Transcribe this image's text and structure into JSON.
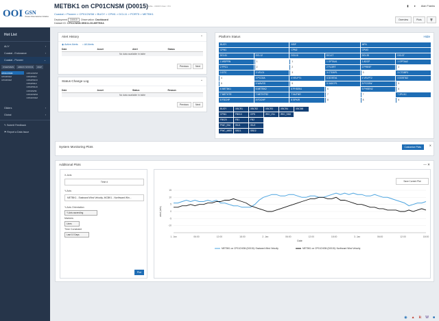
{
  "sidebar": {
    "logo_main": "OOI",
    "logo_sub1": "GSN",
    "logo_sub2": "Ocean Observatories Initiative",
    "heading": "Hot List",
    "items": [
      {
        "label": "ALIY"
      },
      {
        "label": "Coastal - Endurance"
      },
      {
        "label": "Coastal - Pioneer"
      }
    ],
    "tabs": [
      "OVERVIEW",
      "ARRAY STATUS",
      "MAP"
    ],
    "left_list": [
      "CP01CNSM",
      "CP03ISSM",
      "CP03ISSM"
    ],
    "right_list": [
      "CP01CNPM",
      "CP02PMCI",
      "CP02PMCO",
      "CP02PMUI",
      "CP02PMUO",
      "CP03ISPM",
      "CP04OSPM",
      "CP04OSSM"
    ],
    "lower_items": [
      {
        "label": "Gliders"
      },
      {
        "label": "Global"
      }
    ],
    "links": [
      {
        "label": "Submit Feedback"
      },
      {
        "label": "Report a Data Issue"
      }
    ]
  },
  "header": {
    "title": "METBK1 on CP01CNSM (D0015)",
    "subtitle": "Not visible - D0015 Clam / PU",
    "breadcrumb": "Coastal > Pioneer > CP01CNSM > BUOY > CPM1 > DCL11 > PORT5 > METBK1",
    "deployment_label": "Deployment",
    "deployment_value": "D0015",
    "observation_label": "Observation:",
    "observation_value": "Dashboard",
    "dataset_label": "Dataset ID:",
    "dataset_value": "CP01CNSM-SBD11-06-METBKA",
    "user": "Alan Franks",
    "overview_btn": "Overview",
    "plots_btn": "Plots"
  },
  "alert_history": {
    "title": "Alert History",
    "radio_active": "Active Alerts",
    "radio_all": "All Alerts",
    "columns": [
      "Date",
      "Asset",
      "Alert",
      "Status"
    ],
    "empty": "No data available in table",
    "prev": "Previous",
    "next": "Next"
  },
  "status_log": {
    "title": "Status Change Log",
    "columns": [
      "Date",
      "Asset",
      "Status",
      "Reason"
    ],
    "empty": "No data available in table",
    "prev": "Previous",
    "next": "Next"
  },
  "platform_status": {
    "title": "Platform Status",
    "hide": "Hide",
    "row1": [
      "BUOY",
      "NSIF",
      "MFN"
    ],
    "row2": [
      "CPM1",
      "CPM2",
      "CPM3"
    ],
    "row3": [
      "DCL11",
      "DCL12",
      "DCL16",
      "DCL17",
      "DCL35",
      "DCL37"
    ],
    "grid": [
      [
        "1 WDPRN",
        "1",
        "1",
        "1 OPTAA1",
        "1 ADCP",
        "1 OPTAA2"
      ],
      [
        "2 FFC1",
        "2",
        "2",
        "2 FLORT",
        "2 PRESF",
        "2"
      ],
      [
        "3 DTC",
        "3 VEL01",
        "3",
        "3 CTDBP1",
        "3",
        "3 CTDBP3"
      ],
      [
        "4",
        "4 PCO2A",
        "4 VELPT1",
        "4 DOSTA1",
        "4 VELPT2",
        "4 DOSTA2"
      ],
      [
        "5",
        "5 WAVSS",
        "5",
        "5 VADCP1",
        "5 PCO2W",
        "5"
      ],
      [
        "6 METBK1",
        "6 METBK2",
        "6 PHSEN1",
        "6",
        "6 PHSEN2",
        "6"
      ],
      [
        "7 METHTR",
        "7 METHTR2",
        "7 NUTNR",
        "7",
        "7",
        "7 ZPLSC"
      ],
      [
        "8 FDCHP",
        "8 FDCHP",
        "8 SPKIR",
        "8",
        "8",
        "8"
      ]
    ],
    "buoy_block": {
      "head": [
        "BUOY",
        "XBCR1",
        "XBCR2",
        "XBCR3",
        "XBCR4",
        "XBCBB"
      ],
      "row_a": [
        "CPM1",
        "FB010",
        "GPS",
        "IRID_ISU",
        "IRID_SBD"
      ],
      "row_b": [
        "FB020",
        "FB1",
        "FB2"
      ],
      "row_c": [
        "PWC_BIU",
        "ISU1",
        "ISU2"
      ],
      "row_d": [
        "PWC_MBR",
        "SBD1",
        "SBD2"
      ]
    }
  },
  "system_monitoring": {
    "title": "System Monitoring Plots",
    "button": "Customize Plots"
  },
  "additional_plots": {
    "title": "Additional Plots",
    "x_axis_label": "X-Axis",
    "x_axis_value": "Time #",
    "y_axis_label": "Y-Axis",
    "y_axis_value": "METBK1 - Eastward Wind Velocity, MCBK1 - Northward Win...",
    "y_orient_label": "Y-Axis Orientation",
    "y_orient_value": "Y-Axis ascending",
    "markers_label": "Markers",
    "markers_value": "Lines",
    "timeframe_label": "Time Constraint",
    "timeframe_value": "Last 10 Days",
    "plot_button": "Plot",
    "save_button": "Save Current Plot"
  },
  "chart_data": {
    "type": "line",
    "xlabel": "Date",
    "ylabel": "wind (m/s)",
    "ylim": [
      -15,
      15
    ],
    "x_ticks": [
      "1. Jan",
      "06:00",
      "12:00",
      "18:00",
      "2. Jan",
      "06:00",
      "12:00",
      "18:00",
      "3. Jan",
      "06:00",
      "12:00",
      "18:00"
    ],
    "y_ticks": [
      "15",
      "10",
      "5",
      "0",
      "-5",
      "-10"
    ],
    "series": [
      {
        "name": "METBK1 on CP01CNSM (D0015): Eastward Wind Velocity",
        "color": "#4aa3df",
        "values": [
          6,
          6,
          7,
          8,
          7,
          8,
          7,
          7,
          8,
          7,
          8,
          6,
          6,
          5,
          4,
          4,
          3,
          3,
          3,
          5,
          8,
          10,
          11,
          12,
          12,
          11,
          11,
          12,
          12,
          11,
          10,
          10,
          11,
          11,
          10,
          10,
          11,
          12,
          13,
          12,
          13,
          12,
          13,
          12,
          12,
          11,
          11,
          12,
          11,
          10,
          10,
          9,
          8,
          7,
          6,
          4,
          5,
          6,
          6,
          7
        ]
      },
      {
        "name": "METBK1 on CP01CNSM (D0015): Northward Wind Velocity",
        "color": "#111111",
        "values": [
          3,
          3,
          4,
          4,
          5,
          4,
          5,
          5,
          6,
          6,
          7,
          7,
          8,
          8,
          9,
          8,
          7,
          6,
          4,
          3,
          2,
          1,
          0,
          0,
          1,
          2,
          3,
          4,
          5,
          6,
          7,
          8,
          9,
          9,
          10,
          10,
          9,
          9,
          10,
          8,
          8,
          7,
          6,
          5,
          5,
          4,
          3,
          3,
          2,
          2,
          1,
          1,
          1,
          0,
          0,
          1,
          0,
          1,
          2,
          1
        ]
      }
    ]
  }
}
